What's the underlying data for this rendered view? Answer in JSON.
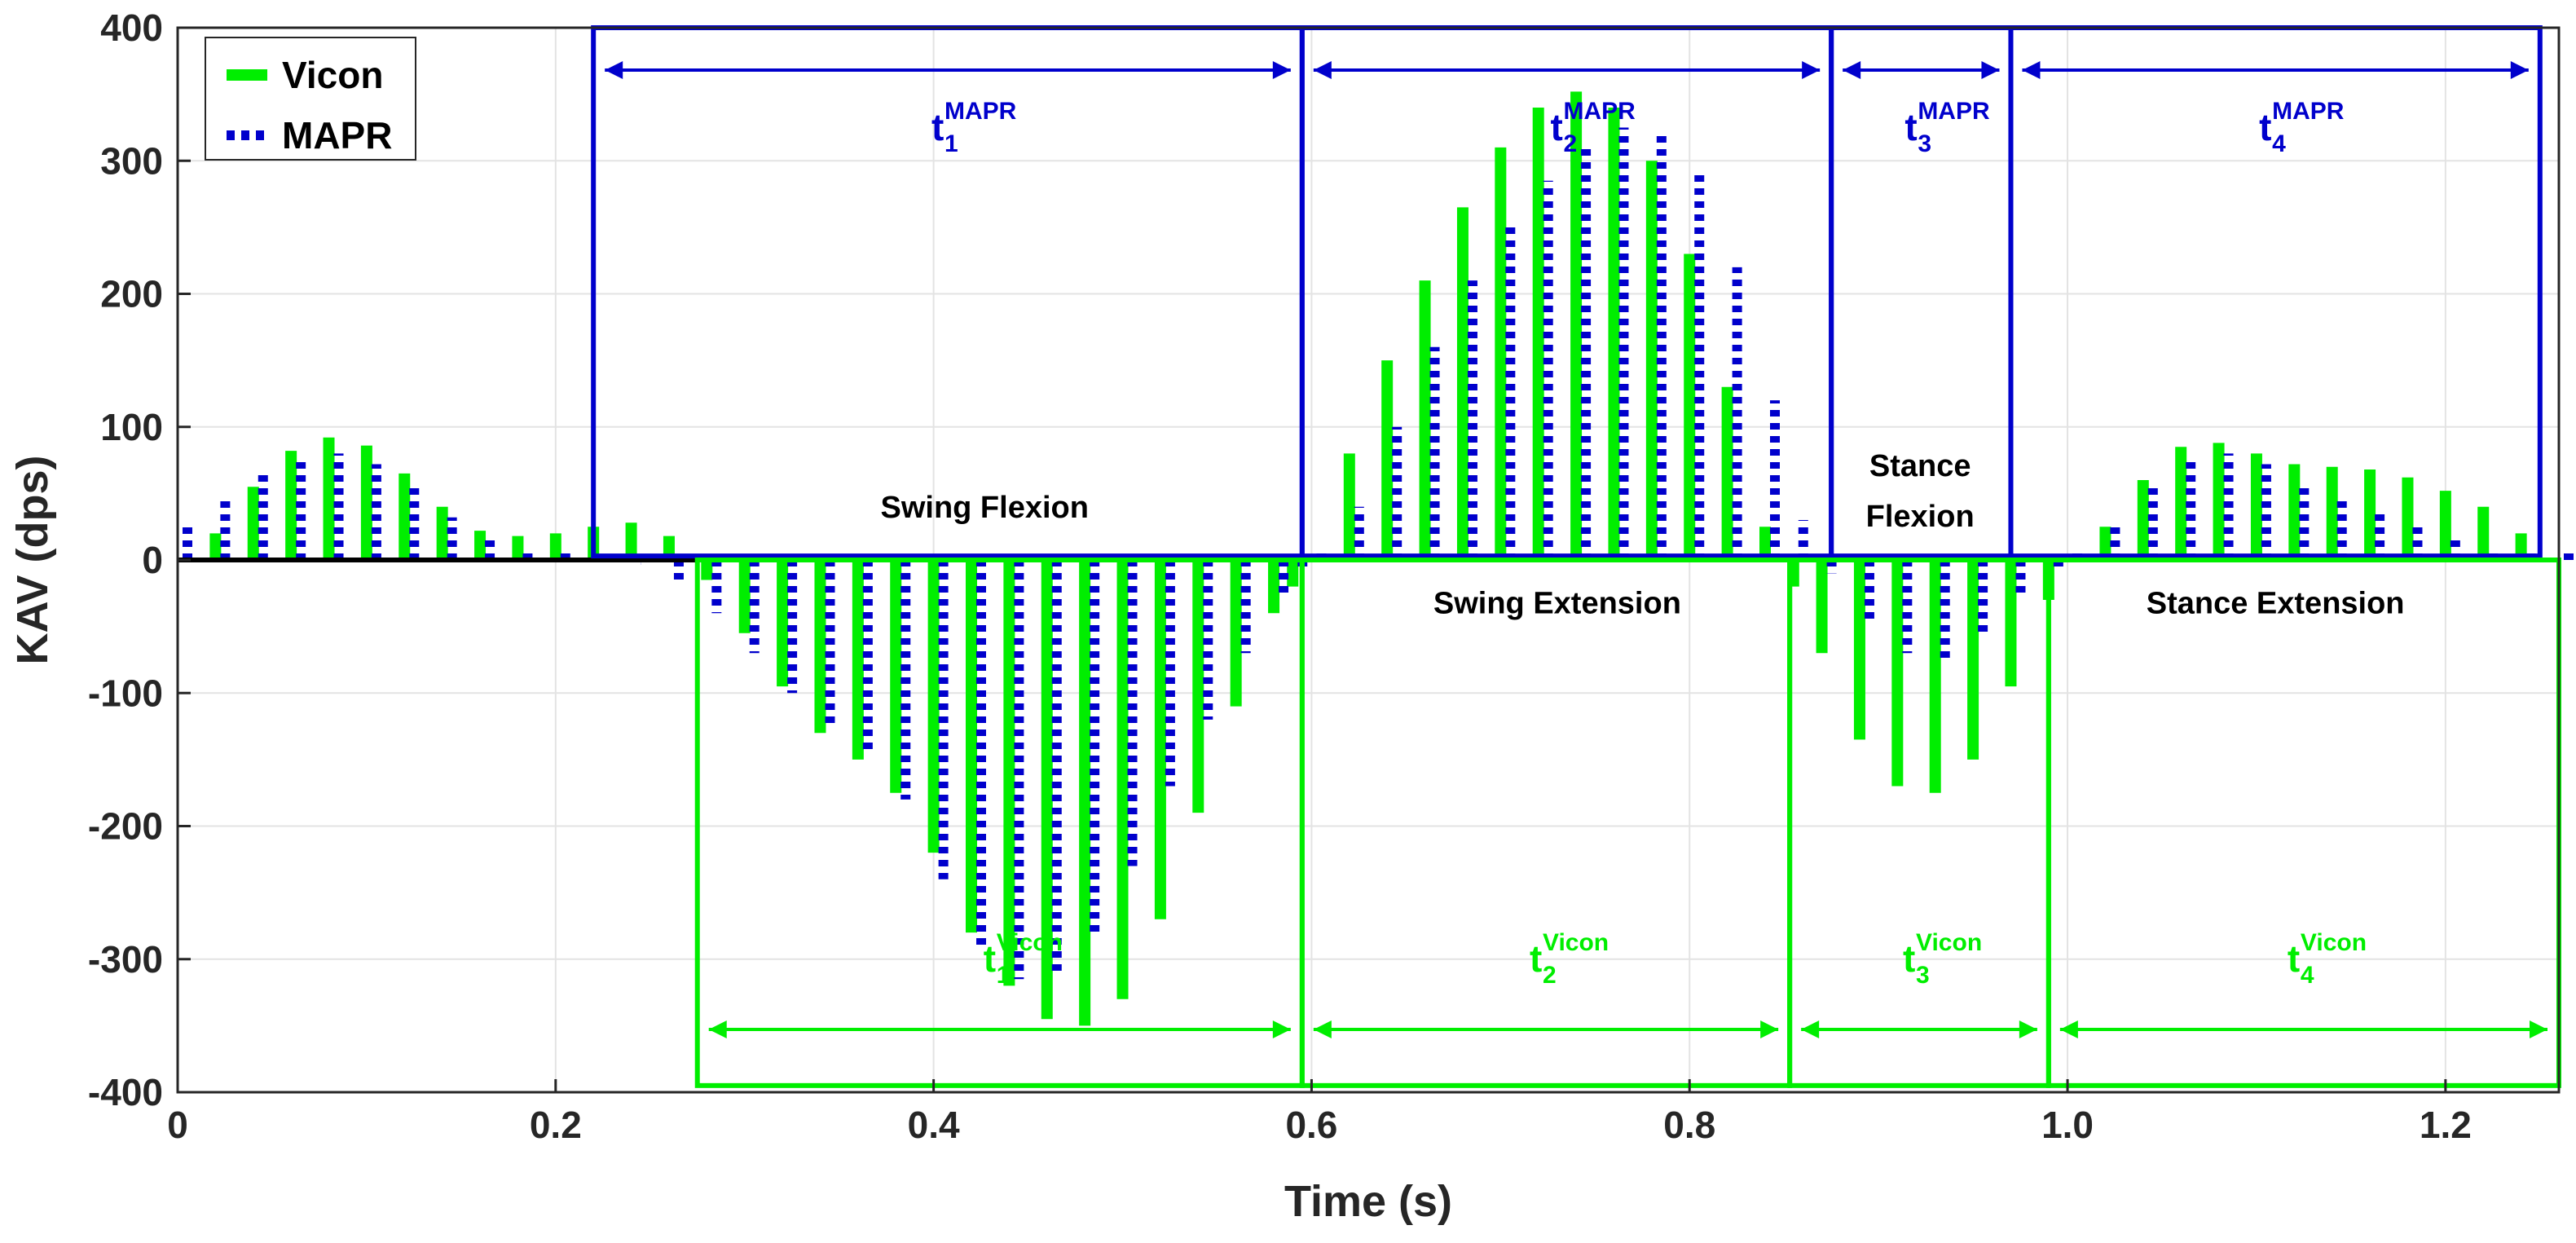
{
  "chart_data": {
    "type": "line",
    "title": "",
    "xlabel": "Time (s)",
    "ylabel": "KAV (dps)",
    "xlim": [
      0,
      1.26
    ],
    "ylim": [
      -400,
      400
    ],
    "x_ticks": [
      0,
      0.2,
      0.4,
      0.6,
      0.8,
      1.0,
      1.2
    ],
    "x_tick_labels": [
      "0",
      "0.2",
      "0.4",
      "0.6",
      "0.8",
      "1.0",
      "1.2"
    ],
    "y_ticks": [
      -400,
      -300,
      -200,
      -100,
      0,
      100,
      200,
      300,
      400
    ],
    "y_tick_labels": [
      "-400",
      "-300",
      "-200",
      "-100",
      "0",
      "100",
      "200",
      "300",
      "400"
    ],
    "grid": true,
    "legend_position": "top-left",
    "colors": {
      "vicon": "#00ee00",
      "mapr": "#0000cc",
      "zero_line": "#000000"
    },
    "series": [
      {
        "name": "Vicon",
        "style": "solid",
        "x": [
          0.0,
          0.02,
          0.04,
          0.06,
          0.08,
          0.1,
          0.12,
          0.14,
          0.16,
          0.18,
          0.2,
          0.22,
          0.24,
          0.26,
          0.28,
          0.3,
          0.32,
          0.34,
          0.36,
          0.38,
          0.4,
          0.42,
          0.44,
          0.46,
          0.48,
          0.5,
          0.52,
          0.54,
          0.56,
          0.58,
          0.59,
          0.6,
          0.62,
          0.64,
          0.66,
          0.68,
          0.7,
          0.72,
          0.74,
          0.76,
          0.78,
          0.8,
          0.82,
          0.84,
          0.855,
          0.87,
          0.89,
          0.91,
          0.93,
          0.95,
          0.97,
          0.99,
          1.0,
          1.02,
          1.04,
          1.06,
          1.08,
          1.1,
          1.12,
          1.14,
          1.16,
          1.18,
          1.2,
          1.22,
          1.24,
          1.26
        ],
        "values": [
          0,
          20,
          55,
          82,
          92,
          86,
          65,
          40,
          22,
          18,
          20,
          25,
          28,
          18,
          -15,
          -55,
          -95,
          -130,
          -150,
          -175,
          -220,
          -280,
          -320,
          -345,
          -350,
          -330,
          -270,
          -190,
          -110,
          -40,
          -20,
          0,
          80,
          150,
          210,
          265,
          310,
          340,
          352,
          340,
          300,
          230,
          130,
          25,
          -20,
          -70,
          -135,
          -170,
          -175,
          -150,
          -95,
          -30,
          0,
          25,
          60,
          85,
          88,
          80,
          72,
          70,
          68,
          62,
          52,
          40,
          20,
          0
        ]
      },
      {
        "name": "MAPR",
        "style": "dotted",
        "x": [
          0.0,
          0.02,
          0.04,
          0.06,
          0.08,
          0.1,
          0.12,
          0.14,
          0.16,
          0.18,
          0.2,
          0.22,
          0.24,
          0.26,
          0.28,
          0.3,
          0.32,
          0.34,
          0.36,
          0.38,
          0.4,
          0.42,
          0.44,
          0.46,
          0.48,
          0.5,
          0.52,
          0.54,
          0.56,
          0.58,
          0.59,
          0.6,
          0.62,
          0.64,
          0.66,
          0.68,
          0.7,
          0.72,
          0.74,
          0.76,
          0.78,
          0.8,
          0.82,
          0.84,
          0.855,
          0.87,
          0.89,
          0.91,
          0.93,
          0.95,
          0.97,
          0.99,
          1.0,
          1.02,
          1.04,
          1.06,
          1.08,
          1.1,
          1.12,
          1.14,
          1.16,
          1.18,
          1.2,
          1.22,
          1.24,
          1.26
        ],
        "values": [
          25,
          45,
          65,
          78,
          80,
          72,
          55,
          32,
          15,
          8,
          5,
          3,
          0,
          -15,
          -40,
          -70,
          -100,
          -125,
          -145,
          -180,
          -240,
          -290,
          -315,
          -310,
          -280,
          -230,
          -170,
          -120,
          -70,
          -25,
          -8,
          5,
          40,
          100,
          160,
          210,
          250,
          285,
          310,
          325,
          320,
          290,
          220,
          120,
          30,
          -10,
          -45,
          -70,
          -75,
          -55,
          -25,
          -5,
          5,
          25,
          55,
          75,
          80,
          72,
          58,
          45,
          35,
          25,
          15,
          8,
          5,
          5
        ]
      }
    ],
    "legend": [
      "Vicon",
      "MAPR"
    ],
    "phase_labels": {
      "swing_flexion": "Swing Flexion",
      "swing_extension": "Swing Extension",
      "stance_flexion_line1": "Stance",
      "stance_flexion_line2": "Flexion",
      "stance_extension": "Stance Extension"
    },
    "mapr_boxes": [
      {
        "x0": 0.22,
        "x1": 0.595,
        "y0": 3,
        "y1": 400,
        "label_main": "t",
        "label_sub": "1",
        "label_sup": "MAPR"
      },
      {
        "x0": 0.595,
        "x1": 0.875,
        "y0": 3,
        "y1": 400,
        "label_main": "t",
        "label_sub": "2",
        "label_sup": "MAPR"
      },
      {
        "x0": 0.875,
        "x1": 0.97,
        "y0": 3,
        "y1": 400,
        "label_main": "t",
        "label_sub": "3",
        "label_sup": "MAPR"
      },
      {
        "x0": 0.97,
        "x1": 1.25,
        "y0": 3,
        "y1": 400,
        "label_main": "t",
        "label_sub": "4",
        "label_sup": "MAPR"
      }
    ],
    "vicon_boxes": [
      {
        "x0": 0.275,
        "x1": 0.595,
        "y0": -395,
        "y1": 0,
        "label_main": "t",
        "label_sub": "1",
        "label_sup": "Vicon"
      },
      {
        "x0": 0.595,
        "x1": 0.853,
        "y0": -395,
        "y1": 0,
        "label_main": "t",
        "label_sub": "2",
        "label_sup": "Vicon"
      },
      {
        "x0": 0.853,
        "x1": 0.99,
        "y0": -395,
        "y1": 0,
        "label_main": "t",
        "label_sub": "3",
        "label_sup": "Vicon"
      },
      {
        "x0": 0.99,
        "x1": 1.26,
        "y0": -395,
        "y1": 0,
        "label_main": "t",
        "label_sub": "4",
        "label_sup": "Vicon"
      }
    ]
  }
}
